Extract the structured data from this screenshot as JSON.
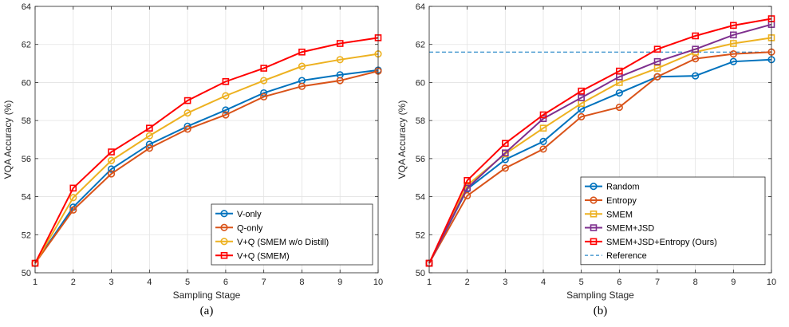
{
  "chart_data": [
    {
      "type": "line",
      "caption": "(a)",
      "xlabel": "Sampling Stage",
      "ylabel": "VQA Accuracy (%)",
      "x": [
        1,
        2,
        3,
        4,
        5,
        6,
        7,
        8,
        9,
        10
      ],
      "xlim": [
        1,
        10
      ],
      "ylim": [
        50,
        64
      ],
      "yticks": [
        50,
        52,
        54,
        56,
        58,
        60,
        62,
        64
      ],
      "grid": true,
      "legend_position": "bottom-right",
      "series": [
        {
          "name": "V-only",
          "color": "#0072BD",
          "marker": "circle",
          "values": [
            50.5,
            53.45,
            55.45,
            56.75,
            57.7,
            58.55,
            59.45,
            60.1,
            60.4,
            60.65
          ]
        },
        {
          "name": "Q-only",
          "color": "#D95319",
          "marker": "circle",
          "values": [
            50.5,
            53.3,
            55.2,
            56.55,
            57.55,
            58.3,
            59.25,
            59.8,
            60.1,
            60.6
          ]
        },
        {
          "name": "V+Q (SMEM w/o Distill)",
          "color": "#EDB120",
          "marker": "circle",
          "values": [
            50.5,
            53.95,
            55.9,
            57.2,
            58.4,
            59.3,
            60.1,
            60.85,
            61.2,
            61.5
          ]
        },
        {
          "name": "V+Q (SMEM)",
          "color": "#FF0000",
          "marker": "square",
          "values": [
            50.5,
            54.45,
            56.35,
            57.6,
            59.05,
            60.05,
            60.75,
            61.6,
            62.05,
            62.35
          ]
        }
      ]
    },
    {
      "type": "line",
      "caption": "(b)",
      "xlabel": "Sampling Stage",
      "ylabel": "VQA Accuracy (%)",
      "x": [
        1,
        2,
        3,
        4,
        5,
        6,
        7,
        8,
        9,
        10
      ],
      "xlim": [
        1,
        10
      ],
      "ylim": [
        50,
        64
      ],
      "yticks": [
        50,
        52,
        54,
        56,
        58,
        60,
        62,
        64
      ],
      "grid": true,
      "legend_position": "bottom-right",
      "series": [
        {
          "name": "Random",
          "color": "#0072BD",
          "marker": "circle",
          "values": [
            50.5,
            54.4,
            55.95,
            56.9,
            58.6,
            59.45,
            60.3,
            60.35,
            61.1,
            61.2
          ]
        },
        {
          "name": "Entropy",
          "color": "#D95319",
          "marker": "circle",
          "values": [
            50.5,
            54.05,
            55.5,
            56.5,
            58.2,
            58.7,
            60.3,
            61.25,
            61.5,
            61.6
          ]
        },
        {
          "name": "SMEM",
          "color": "#EDB120",
          "marker": "square",
          "values": [
            50.5,
            54.6,
            56.25,
            57.6,
            58.9,
            60.0,
            60.75,
            61.6,
            62.05,
            62.35
          ]
        },
        {
          "name": "SMEM+JSD",
          "color": "#7E2F8E",
          "marker": "square",
          "values": [
            50.5,
            54.45,
            56.3,
            58.1,
            59.2,
            60.3,
            61.1,
            61.75,
            62.5,
            63.05
          ]
        },
        {
          "name": "SMEM+JSD+Entropy (Ours)",
          "color": "#FF0000",
          "marker": "square",
          "values": [
            50.5,
            54.85,
            56.8,
            58.3,
            59.55,
            60.6,
            61.75,
            62.45,
            63.0,
            63.35
          ]
        }
      ],
      "reference": {
        "name": "Reference",
        "color": "#0072BD",
        "value": 61.6
      }
    }
  ]
}
